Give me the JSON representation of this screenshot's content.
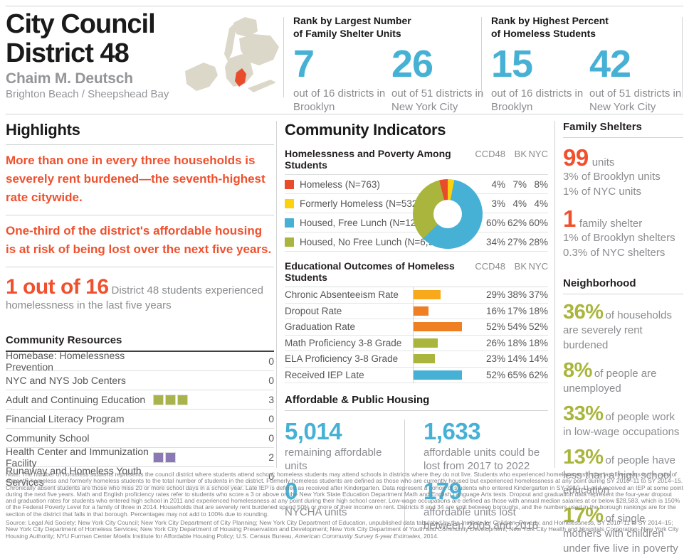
{
  "header": {
    "title_line1": "City Council",
    "title_line2": "District 48",
    "member": "Chaim M. Deutsch",
    "neighborhoods": "Brighton Beach / Sheepshead Bay",
    "ranks": [
      {
        "heading_line1": "Rank by Largest Number",
        "heading_line2": "of Family Shelter Units",
        "stats": [
          {
            "value": "7",
            "caption": "out of 16 districts in Brooklyn"
          },
          {
            "value": "26",
            "caption": "out of 51 districts in New York City"
          }
        ]
      },
      {
        "heading_line1": "Rank by Highest Percent",
        "heading_line2": "of Homeless Students",
        "stats": [
          {
            "value": "15",
            "caption": "out of 16 districts in Brooklyn"
          },
          {
            "value": "42",
            "caption": "out of 51 districts in New York City"
          }
        ]
      }
    ]
  },
  "highlights": {
    "title": "Highlights",
    "statements": [
      "More than one in every three households is severely rent burdened—the seventh-highest rate citywide.",
      "One-third of the district's affordable housing is at risk of being lost over the next five years."
    ],
    "stat": {
      "value": "1 out of 16",
      "caption": "District 48 students experienced homelessness in the last five years"
    }
  },
  "community_resources": {
    "title": "Community Resources",
    "rows": [
      {
        "label": "Homebase: Homelessness Prevention",
        "count": "0",
        "squares": 0,
        "color": ""
      },
      {
        "label": "NYC and NYS Job Centers",
        "count": "0",
        "squares": 0,
        "color": ""
      },
      {
        "label": "Adult and Continuing Education",
        "count": "3",
        "squares": 3,
        "color": "#A8B44B"
      },
      {
        "label": "Financial Literacy Program",
        "count": "0",
        "squares": 0,
        "color": ""
      },
      {
        "label": "Community School",
        "count": "0",
        "squares": 0,
        "color": ""
      },
      {
        "label": "Health Center and Immunization Facility",
        "count": "2",
        "squares": 2,
        "color": "#8B79B6"
      },
      {
        "label": "Runaway and Homeless Youth Services",
        "count": "0",
        "squares": 0,
        "color": ""
      }
    ]
  },
  "community_indicators": {
    "title": "Community Indicators",
    "poverty_table": {
      "heading": "Homelessness and Poverty Among Students",
      "columns": [
        "CCD48",
        "BK",
        "NYC"
      ],
      "rows": [
        {
          "label": "Homeless (N=763)",
          "color": "#E84C2B",
          "ccd48": "4%",
          "bk": "7%",
          "nyc": "8%"
        },
        {
          "label": "Formerly Homeless (N=532)",
          "color": "#FCD20C",
          "ccd48": "3%",
          "bk": "4%",
          "nyc": "4%"
        },
        {
          "label": "Housed, Free Lunch (N=12,442)",
          "color": "#46B1D5",
          "ccd48": "60%",
          "bk": "62%",
          "nyc": "60%"
        },
        {
          "label": "Housed, No Free Lunch (N=6,984)",
          "color": "#A9B53C",
          "ccd48": "34%",
          "bk": "27%",
          "nyc": "28%"
        }
      ]
    },
    "outcomes_table": {
      "heading": "Educational Outcomes of Homeless Students",
      "columns": [
        "CCD48",
        "BK",
        "NYC"
      ],
      "rows": [
        {
          "label": "Chronic Absenteeism Rate",
          "ccd48": "29%",
          "bk": "38%",
          "nyc": "37%"
        },
        {
          "label": "Dropout Rate",
          "ccd48": "16%",
          "bk": "17%",
          "nyc": "18%"
        },
        {
          "label": "Graduation Rate",
          "ccd48": "52%",
          "bk": "54%",
          "nyc": "52%"
        },
        {
          "label": "Math Proficiency 3-8 Grade",
          "ccd48": "26%",
          "bk": "18%",
          "nyc": "18%"
        },
        {
          "label": "ELA Proficiency 3-8 Grade",
          "ccd48": "23%",
          "bk": "14%",
          "nyc": "14%"
        },
        {
          "label": "Received IEP Late",
          "ccd48": "52%",
          "bk": "65%",
          "nyc": "62%"
        }
      ]
    },
    "housing": {
      "heading": "Affordable & Public Housing",
      "stats": [
        {
          "value": "5,014",
          "caption": "remaining affordable units"
        },
        {
          "value": "1,633",
          "caption": "affordable units could be lost from 2017 to 2022"
        },
        {
          "value": "0",
          "caption": "NYCHA units"
        },
        {
          "value": "179",
          "caption": "affordable units lost between 2005 and 2016"
        }
      ]
    }
  },
  "family_shelters": {
    "title": "Family Shelters",
    "stats": [
      {
        "value": "99",
        "unit": "units",
        "lines": [
          "3% of Brooklyn units",
          "1% of NYC units"
        ]
      },
      {
        "value": "1",
        "unit": "family shelter",
        "lines": [
          "1% of Brooklyn shelters",
          "0.3% of NYC shelters"
        ]
      }
    ]
  },
  "neighborhood": {
    "title": "Neighborhood",
    "stats": [
      {
        "value": "36%",
        "caption": "of households are severely rent burdened"
      },
      {
        "value": "8%",
        "caption": "of people are unemployed"
      },
      {
        "value": "33%",
        "caption": "of people work in low-wage occupations"
      },
      {
        "value": "13%",
        "caption": "of people have less than a high school education"
      },
      {
        "value": "17%",
        "caption": "of single mothers with children under five live in poverty"
      }
    ]
  },
  "chart_data": [
    {
      "type": "pie",
      "donut": true,
      "title": "Homelessness and Poverty Among Students (CCD48)",
      "labels": [
        "Homeless",
        "Formerly Homeless",
        "Housed, Free Lunch",
        "Housed, No Free Lunch"
      ],
      "values": [
        4,
        3,
        60,
        34
      ],
      "colors": [
        "#E84C2B",
        "#FCD20C",
        "#46B1D5",
        "#A9B53C"
      ]
    },
    {
      "type": "bar",
      "title": "Educational Outcomes of Homeless Students (CCD48, %)",
      "categories": [
        "Chronic Absenteeism Rate",
        "Dropout Rate",
        "Graduation Rate",
        "Math Proficiency 3-8 Grade",
        "ELA Proficiency 3-8 Grade",
        "Received IEP Late"
      ],
      "values": [
        29,
        16,
        52,
        26,
        23,
        52
      ],
      "colors": [
        "#F7A81B",
        "#EE7F22",
        "#EE7F22",
        "#A9B53C",
        "#A9B53C",
        "#46B1D5"
      ],
      "xlim": [
        0,
        65
      ]
    }
  ],
  "footer": {
    "note": "Note: The number of homeless students represents the council district where students attend school; homeless students may attend schools in districts where they do not live. Students who experienced homelessness in the last five years is the ratio of currently homeless and formerly homeless students to the total number of students in the district. Formerly homeless students are defined as those who are currently housed but experienced homelessness at any point during SY 2010–11 to SY 2014–15. Chronically absent students are those who miss 20 or more school days in a school year. Late IEP is defined as received after Kindergarten. Data represent a cohort of students who entered Kindergarten in SY 2010–11 and received an IEP at some point during the next five years. Math and English proficiency rates refer to students who score a 3 or above on the New York State Education Department Math and English Language Arts tests. Dropout and graduation data represent the four-year dropout and graduation rates for students who entered high school in 2011 and experienced homelessness at any point during their high school career. Low-wage occupations are defined as those with annual median salaries at or below $28,583, which is 150% of the Federal Poverty Level for a family of three in 2014. Households that are severely rent burdened spend 50% or more of their income on rent. Districts 8 and 34 are split between boroughs, and the numbers used in the borough rankings are for the section of the district that falls in that borough. Percentages may not add to 100% due to rounding.",
    "source_before": "Source: Legal Aid Society; New York City Council; New York City Department of City Planning; New York City Department of Education, unpublished data tabulated by the Institute for Children, Poverty, and Homelessness, SY 2010–11 to SY 2014–15; New York City Department of Homeless Services; New York City Department of Housing Preservation and Development; New York City Department of Youth and Community Development; New York City Health and Hospitals Corporation; New York City Housing Authority; NYU Furman Center Moelis Institute for Affordable Housing Policy; U.S. Census Bureau, ",
    "source_italic": "American Community Survey 5-year Estimates",
    "source_after": ", 2014."
  }
}
